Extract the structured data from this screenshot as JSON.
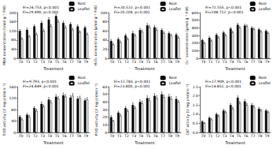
{
  "chart_data": [
    {
      "type": "bar",
      "y_label": "MDA concentration (nmol g⁻¹ FW)",
      "x_label": "Treatment",
      "annotations": [
        "Fr=24.753, p<0.001",
        "Fl=29.490, p<0.001"
      ],
      "categories": [
        "T0",
        "T1",
        "T2",
        "T3",
        "T4",
        "T5",
        "T6",
        "T7",
        "T8",
        "T9"
      ],
      "series": [
        {
          "name": "Root",
          "color": "#000000",
          "values": [
            120,
            125,
            140,
            155,
            170,
            185,
            155,
            150,
            140,
            135
          ],
          "errors": [
            6,
            7,
            7,
            8,
            8,
            9,
            8,
            7,
            7,
            6
          ]
        },
        {
          "name": "Leaflet",
          "color": "#ffffff",
          "values": [
            85,
            95,
            105,
            120,
            140,
            160,
            135,
            125,
            115,
            105
          ],
          "errors": [
            5,
            6,
            6,
            7,
            8,
            8,
            7,
            7,
            6,
            6
          ]
        }
      ],
      "ylim": [
        0,
        200
      ],
      "yticks": [
        0,
        40,
        80,
        120,
        160,
        200
      ],
      "grid": false,
      "legend": "top-right"
    },
    {
      "type": "bar",
      "y_label": "H₂O₂ concentration (μmol g⁻¹ FW)",
      "x_label": "Treatment",
      "annotations": [
        "Fr=20.522, p<0.001",
        "Fl=20.204, p<0.001"
      ],
      "categories": [
        "T0",
        "T1",
        "T2",
        "T3",
        "T4",
        "T5",
        "T6",
        "T7",
        "T8",
        "T9"
      ],
      "series": [
        {
          "name": "Root",
          "color": "#000000",
          "values": [
            38,
            42,
            50,
            55,
            62,
            72,
            68,
            62,
            55,
            52
          ],
          "errors": [
            3,
            3,
            3,
            4,
            4,
            4,
            4,
            3,
            3,
            3
          ]
        },
        {
          "name": "Leaflet",
          "color": "#ffffff",
          "values": [
            30,
            35,
            42,
            50,
            58,
            68,
            62,
            55,
            50,
            45
          ],
          "errors": [
            2,
            3,
            3,
            3,
            4,
            4,
            4,
            3,
            3,
            3
          ]
        }
      ],
      "ylim": [
        0,
        100
      ],
      "yticks": [
        0,
        20,
        40,
        60,
        80,
        100
      ],
      "grid": false,
      "legend": "top-right"
    },
    {
      "type": "bar",
      "y_label": "O₂⁻ concentration (μmol g⁻¹ FW)",
      "x_label": "Treatment",
      "annotations": [
        "Fr=72.555, p<0.001",
        "Fl=108.712, p<0.001"
      ],
      "categories": [
        "T0",
        "T1",
        "T2",
        "T3",
        "T4",
        "T5",
        "T6",
        "T7",
        "T8",
        "T9"
      ],
      "series": [
        {
          "name": "Root",
          "color": "#000000",
          "values": [
            240,
            270,
            310,
            340,
            390,
            440,
            430,
            400,
            380,
            360
          ],
          "errors": [
            12,
            14,
            15,
            16,
            18,
            20,
            18,
            17,
            16,
            15
          ]
        },
        {
          "name": "Leaflet",
          "color": "#ffffff",
          "values": [
            200,
            230,
            270,
            300,
            340,
            400,
            420,
            380,
            350,
            330
          ],
          "errors": [
            10,
            12,
            13,
            14,
            16,
            18,
            18,
            16,
            15,
            14
          ]
        }
      ],
      "ylim": [
        0,
        600
      ],
      "yticks": [
        0,
        100,
        200,
        300,
        400,
        500,
        600
      ],
      "grid": false,
      "legend": "top-right"
    },
    {
      "type": "bar",
      "y_label": "SOD activity (U mg protein⁻¹)",
      "x_label": "Treatment",
      "annotations": [
        "Fr=9.793, p<0.001",
        "Fl=24.449, p<0.001"
      ],
      "categories": [
        "T0",
        "T1",
        "T2",
        "T3",
        "T4",
        "T5",
        "T6",
        "T7",
        "T8",
        "T9"
      ],
      "series": [
        {
          "name": "Root",
          "color": "#000000",
          "values": [
            55,
            62,
            85,
            100,
            115,
            125,
            130,
            122,
            118,
            112
          ],
          "errors": [
            5,
            5,
            6,
            7,
            7,
            8,
            8,
            7,
            7,
            6
          ]
        },
        {
          "name": "Leaflet",
          "color": "#ffffff",
          "values": [
            45,
            55,
            75,
            90,
            105,
            118,
            125,
            128,
            120,
            115
          ],
          "errors": [
            4,
            5,
            6,
            6,
            7,
            7,
            8,
            8,
            7,
            7
          ]
        }
      ],
      "ylim": [
        0,
        160
      ],
      "yticks": [
        0,
        40,
        80,
        120,
        160
      ],
      "grid": false,
      "legend": "top-right"
    },
    {
      "type": "bar",
      "y_label": "POD activity (U mg protein⁻¹)",
      "x_label": "Treatment",
      "annotations": [
        "Fr=12.783, p<0.001",
        "Fl=23.800, p<0.001"
      ],
      "categories": [
        "T0",
        "T1",
        "T2",
        "T3",
        "T4",
        "T5",
        "T6",
        "T7",
        "T8",
        "T9"
      ],
      "series": [
        {
          "name": "Root",
          "color": "#000000",
          "values": [
            20,
            26,
            32,
            36,
            40,
            45,
            48,
            50,
            47,
            44
          ],
          "errors": [
            2,
            2,
            2,
            3,
            3,
            3,
            3,
            3,
            3,
            3
          ]
        },
        {
          "name": "Leaflet",
          "color": "#ffffff",
          "values": [
            15,
            22,
            28,
            32,
            38,
            42,
            45,
            46,
            44,
            40
          ],
          "errors": [
            1,
            2,
            2,
            2,
            3,
            3,
            3,
            3,
            3,
            2
          ]
        }
      ],
      "ylim": [
        0,
        60
      ],
      "yticks": [
        0,
        10,
        20,
        30,
        40,
        50,
        60
      ],
      "grid": false,
      "legend": "top-right"
    },
    {
      "type": "bar",
      "y_label": "CAT activity (U mg protein⁻¹)",
      "x_label": "Treatment",
      "annotations": [
        "Fr=17.909, p<0.001",
        "Fl=14.851, p<0.001"
      ],
      "categories": [
        "T0",
        "T1",
        "T2",
        "T3",
        "T4",
        "T5",
        "T6",
        "T7",
        "T8",
        "T9"
      ],
      "series": [
        {
          "name": "Root",
          "color": "#000000",
          "values": [
            0.6,
            0.8,
            1.0,
            1.2,
            1.5,
            1.9,
            1.7,
            1.5,
            1.3,
            1.2
          ],
          "errors": [
            0.05,
            0.06,
            0.07,
            0.08,
            0.09,
            0.1,
            0.1,
            0.09,
            0.08,
            0.07
          ]
        },
        {
          "name": "Leaflet",
          "color": "#ffffff",
          "values": [
            0.5,
            0.7,
            0.9,
            1.1,
            1.3,
            1.6,
            1.5,
            1.4,
            1.2,
            1.1
          ],
          "errors": [
            0.04,
            0.05,
            0.06,
            0.07,
            0.08,
            0.09,
            0.09,
            0.08,
            0.07,
            0.07
          ]
        }
      ],
      "ylim": [
        0,
        2.5
      ],
      "yticks": [
        {
          "value": 0,
          "label": "0.0"
        },
        0.5,
        {
          "value": 1,
          "label": "1.0"
        },
        1.5,
        {
          "value": 2,
          "label": "2.0"
        },
        2.5
      ],
      "grid": false,
      "legend": "top-right"
    }
  ]
}
